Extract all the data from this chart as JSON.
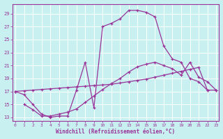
{
  "bg_color": "#c8f0f0",
  "line_color": "#993399",
  "xlabel": "Windchill (Refroidissement éolien,°C)",
  "xlim": [
    -0.3,
    23.3
  ],
  "ylim": [
    12.5,
    30.5
  ],
  "yticks": [
    13,
    15,
    17,
    19,
    21,
    23,
    25,
    27,
    29
  ],
  "xticks": [
    0,
    1,
    2,
    3,
    4,
    5,
    6,
    7,
    8,
    9,
    10,
    11,
    12,
    13,
    14,
    15,
    16,
    17,
    18,
    19,
    20,
    21,
    22,
    23
  ],
  "s1_x": [
    0,
    1,
    2,
    3,
    4,
    5,
    6,
    7,
    8,
    9,
    10,
    11,
    12,
    13,
    14,
    15,
    16,
    17,
    18,
    19,
    20,
    21,
    22
  ],
  "s1_y": [
    17.0,
    16.5,
    15.0,
    13.5,
    13.0,
    13.2,
    13.2,
    17.2,
    21.5,
    14.5,
    27.0,
    27.5,
    28.2,
    29.5,
    29.5,
    29.2,
    28.5,
    24.0,
    22.0,
    21.5,
    19.0,
    18.5,
    17.2
  ],
  "s2_x": [
    0,
    1,
    2,
    3,
    4,
    5,
    6,
    7,
    8,
    9,
    10,
    11,
    12,
    13,
    14,
    15,
    16,
    17,
    18,
    19,
    20,
    21,
    22,
    23
  ],
  "s2_y": [
    17.0,
    17.1,
    17.2,
    17.3,
    17.4,
    17.5,
    17.6,
    17.7,
    17.8,
    17.9,
    18.0,
    18.1,
    18.3,
    18.5,
    18.7,
    18.9,
    19.2,
    19.5,
    19.8,
    20.1,
    20.4,
    20.7,
    17.2,
    17.2
  ],
  "s3_x": [
    1,
    2,
    3,
    4,
    5,
    6,
    7,
    8,
    9,
    10,
    11,
    12,
    13,
    14,
    15,
    16,
    17,
    18,
    19,
    20,
    21,
    22,
    23
  ],
  "s3_y": [
    15.0,
    14.2,
    13.2,
    13.2,
    13.5,
    13.8,
    14.3,
    15.3,
    16.3,
    17.3,
    18.2,
    19.0,
    20.0,
    20.8,
    21.2,
    21.5,
    21.0,
    20.5,
    19.5,
    21.5,
    19.2,
    18.5,
    17.2
  ]
}
